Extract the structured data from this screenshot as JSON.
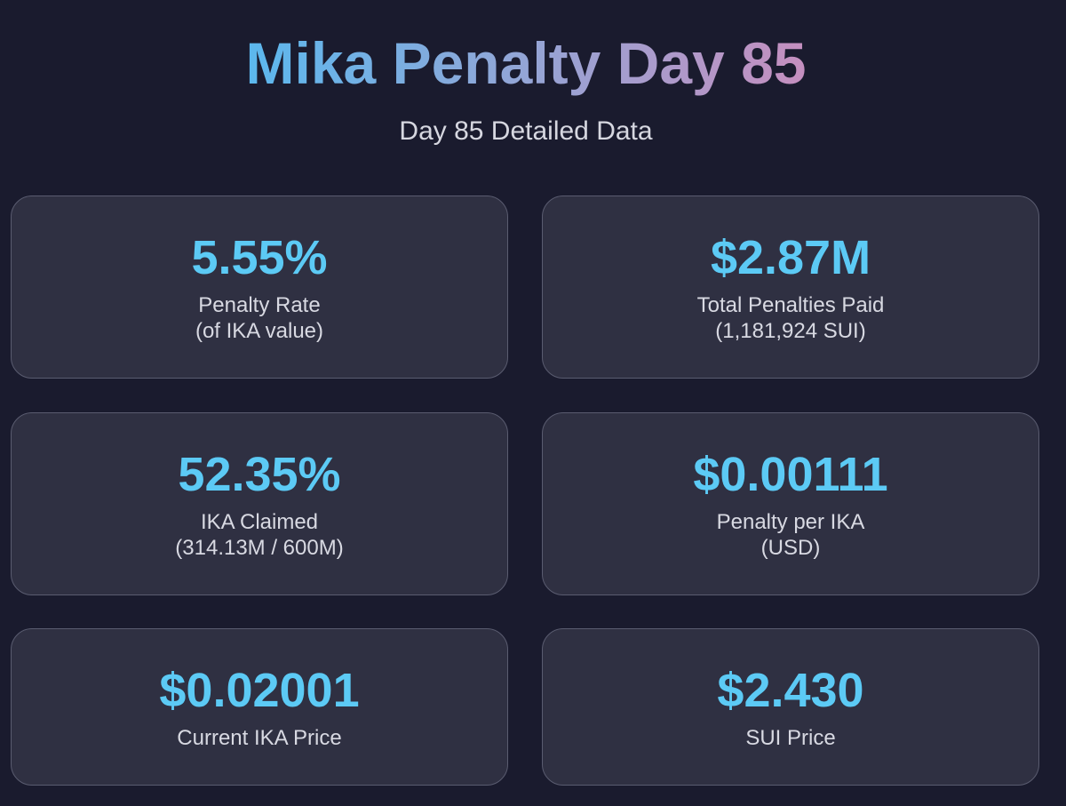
{
  "header": {
    "title": "Mika Penalty Day 85",
    "subtitle": "Day 85 Detailed Data"
  },
  "cards": [
    {
      "value": "5.55%",
      "label": "Penalty Rate",
      "sublabel": "(of IKA value)"
    },
    {
      "value": "$2.87M",
      "label": "Total Penalties Paid",
      "sublabel": "(1,181,924 SUI)"
    },
    {
      "value": "52.35%",
      "label": "IKA Claimed",
      "sublabel": "(314.13M / 600M)"
    },
    {
      "value": "$0.00111",
      "label": "Penalty per IKA",
      "sublabel": "(USD)"
    },
    {
      "value": "$0.02001",
      "label": "Current IKA Price"
    },
    {
      "value": "$2.430",
      "label": "SUI Price"
    }
  ],
  "colors": {
    "background": "#1a1b2e",
    "card_background": "#2f3042",
    "card_border": "#5a5c70",
    "value_accent": "#5ccaf5",
    "title_gradient_start": "#5bb8ee",
    "title_gradient_end": "#c58fbf",
    "label_text": "#d8d9e2"
  }
}
